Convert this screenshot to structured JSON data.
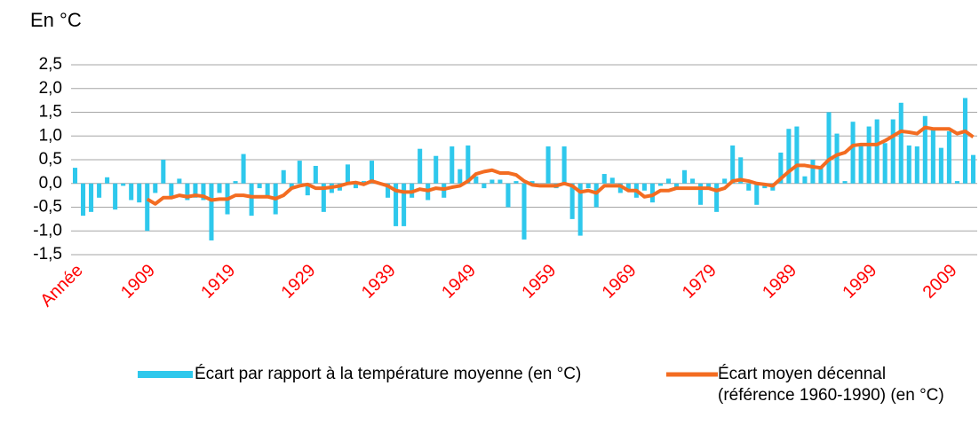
{
  "chart_data": {
    "type": "bar_line",
    "title": "En °C",
    "categories": [
      "Année",
      null,
      null,
      null,
      null,
      null,
      null,
      null,
      null,
      "1909",
      null,
      null,
      null,
      null,
      null,
      null,
      null,
      null,
      null,
      "1919",
      null,
      null,
      null,
      null,
      null,
      null,
      null,
      null,
      null,
      "1929",
      null,
      null,
      null,
      null,
      null,
      null,
      null,
      null,
      null,
      "1939",
      null,
      null,
      null,
      null,
      null,
      null,
      null,
      null,
      null,
      "1949",
      null,
      null,
      null,
      null,
      null,
      null,
      null,
      null,
      null,
      "1959",
      null,
      null,
      null,
      null,
      null,
      null,
      null,
      null,
      null,
      "1969",
      null,
      null,
      null,
      null,
      null,
      null,
      null,
      null,
      null,
      "1979",
      null,
      null,
      null,
      null,
      null,
      null,
      null,
      null,
      null,
      "1989",
      null,
      null,
      null,
      null,
      null,
      null,
      null,
      null,
      null,
      "1999",
      null,
      null,
      null,
      null,
      null,
      null,
      null,
      null,
      null,
      "2009",
      null,
      null,
      null
    ],
    "series": [
      {
        "name": "Écart par rapport à la température moyenne (en °C)",
        "kind": "bar",
        "color": "#2ec8ec",
        "values": [
          0.33,
          -0.68,
          -0.6,
          -0.3,
          0.13,
          -0.55,
          -0.05,
          -0.35,
          -0.4,
          -1.0,
          -0.2,
          0.5,
          -0.3,
          0.1,
          -0.35,
          -0.3,
          -0.35,
          -1.2,
          -0.2,
          -0.65,
          0.05,
          0.62,
          -0.68,
          -0.1,
          -0.3,
          -0.65,
          0.28,
          -0.1,
          0.48,
          -0.25,
          0.37,
          -0.6,
          -0.2,
          -0.15,
          0.4,
          -0.1,
          0.05,
          0.48,
          0.02,
          -0.3,
          -0.9,
          -0.9,
          -0.3,
          0.73,
          -0.35,
          0.58,
          -0.3,
          0.78,
          0.3,
          0.8,
          0.15,
          -0.1,
          0.08,
          0.08,
          -0.5,
          0.05,
          -1.18,
          0.05,
          0.0,
          0.78,
          -0.1,
          0.78,
          -0.75,
          -1.1,
          -0.1,
          -0.5,
          0.2,
          0.12,
          -0.2,
          -0.15,
          -0.3,
          -0.15,
          -0.4,
          -0.05,
          0.1,
          -0.1,
          0.28,
          0.1,
          -0.45,
          -0.1,
          -0.6,
          0.1,
          0.8,
          0.55,
          -0.15,
          -0.45,
          -0.1,
          -0.15,
          0.65,
          1.15,
          1.2,
          0.15,
          0.5,
          0.35,
          1.5,
          1.05,
          0.05,
          1.3,
          0.8,
          1.2,
          1.35,
          0.85,
          1.35,
          1.7,
          0.8,
          0.78,
          1.42,
          1.15,
          0.75,
          1.1,
          0.05,
          1.8,
          0.6
        ]
      },
      {
        "name": "Écart moyen décennal (référence 1960-1990) (en °C)",
        "kind": "line",
        "color": "#f36c21",
        "values": [
          null,
          null,
          null,
          null,
          null,
          null,
          null,
          null,
          null,
          -0.33,
          -0.43,
          -0.3,
          -0.3,
          -0.25,
          -0.28,
          -0.25,
          -0.27,
          -0.35,
          -0.33,
          -0.33,
          -0.25,
          -0.25,
          -0.28,
          -0.28,
          -0.28,
          -0.32,
          -0.25,
          -0.1,
          -0.05,
          -0.02,
          -0.1,
          -0.1,
          -0.08,
          -0.05,
          0.0,
          0.02,
          -0.02,
          0.05,
          0.0,
          -0.05,
          -0.15,
          -0.18,
          -0.18,
          -0.12,
          -0.15,
          -0.1,
          -0.12,
          -0.08,
          -0.05,
          0.05,
          0.2,
          0.25,
          0.28,
          0.22,
          0.22,
          0.18,
          0.05,
          -0.03,
          -0.05,
          -0.05,
          -0.05,
          0.0,
          -0.05,
          -0.18,
          -0.15,
          -0.2,
          -0.05,
          -0.05,
          -0.05,
          -0.15,
          -0.15,
          -0.28,
          -0.25,
          -0.15,
          -0.15,
          -0.1,
          -0.1,
          -0.1,
          -0.1,
          -0.1,
          -0.15,
          -0.1,
          0.05,
          0.08,
          0.05,
          0.0,
          -0.02,
          -0.05,
          0.1,
          0.25,
          0.38,
          0.38,
          0.35,
          0.33,
          0.5,
          0.6,
          0.65,
          0.8,
          0.82,
          0.82,
          0.82,
          0.9,
          1.0,
          1.1,
          1.08,
          1.05,
          1.18,
          1.15,
          1.15,
          1.15,
          1.05,
          1.1,
          0.98
        ]
      }
    ],
    "ylim": [
      -1.5,
      2.5
    ],
    "yticks": [
      {
        "value": -1.5,
        "label": "-1,5"
      },
      {
        "value": -1.0,
        "label": "-1,0"
      },
      {
        "value": -0.5,
        "label": "-0,5"
      },
      {
        "value": 0.0,
        "label": "0,0"
      },
      {
        "value": 0.5,
        "label": "0,5"
      },
      {
        "value": 1.0,
        "label": "1,0"
      },
      {
        "value": 1.5,
        "label": "1,5"
      },
      {
        "value": 2.0,
        "label": "2,0"
      },
      {
        "value": 2.5,
        "label": "2,5"
      }
    ],
    "grid": true,
    "tick_label_color": "#ff0000",
    "legend": "bottom"
  }
}
